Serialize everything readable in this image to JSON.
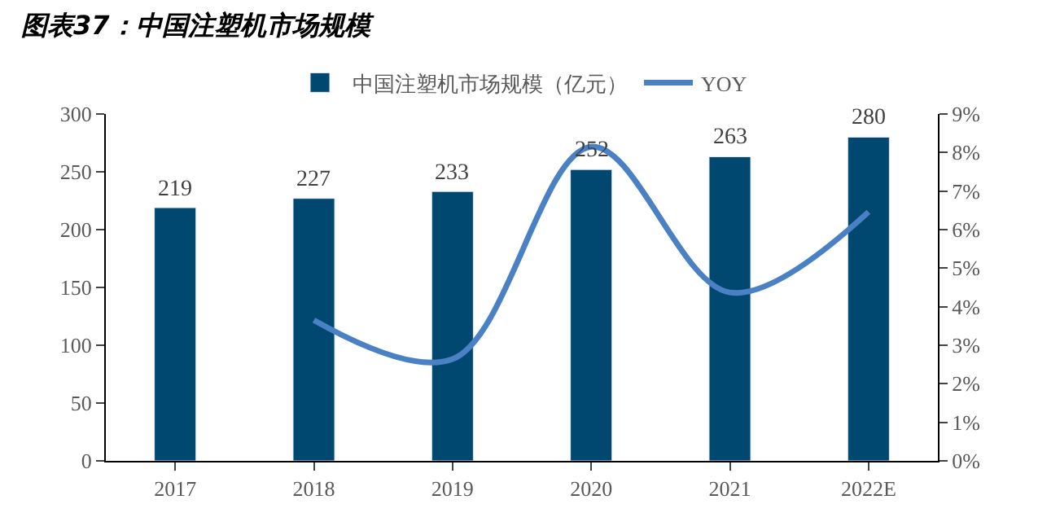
{
  "chart_data": {
    "type": "bar",
    "title": "图表37：中国注塑机市场规模",
    "categories": [
      "2017",
      "2018",
      "2019",
      "2020",
      "2021",
      "2022E"
    ],
    "series": [
      {
        "name": "中国注塑机市场规模（亿元）",
        "color": "#004870",
        "values": [
          219,
          227,
          233,
          252,
          263,
          280
        ],
        "value_labels": [
          "219",
          "227",
          "233",
          "252",
          "263",
          "280"
        ]
      },
      {
        "name": "YOY",
        "type": "line",
        "axis": "y2",
        "color": "#4a80c4",
        "marker": "none",
        "values": [
          null,
          3.65,
          2.64,
          8.15,
          4.37,
          6.46
        ]
      }
    ],
    "ylim": [
      0,
      300
    ],
    "yticks": [
      0,
      50,
      100,
      150,
      200,
      250,
      300
    ],
    "y2lim": [
      0,
      9
    ],
    "y2ticks": [
      {
        "value": 0,
        "label": "0%"
      },
      {
        "value": 1,
        "label": "1%"
      },
      {
        "value": 2,
        "label": "2%"
      },
      {
        "value": 3,
        "label": "3%"
      },
      {
        "value": 4,
        "label": "4%"
      },
      {
        "value": 5,
        "label": "5%"
      },
      {
        "value": 6,
        "label": "6%"
      },
      {
        "value": 7,
        "label": "7%"
      },
      {
        "value": 8,
        "label": "8%"
      },
      {
        "value": 9,
        "label": "9%"
      }
    ],
    "legend": "top"
  }
}
